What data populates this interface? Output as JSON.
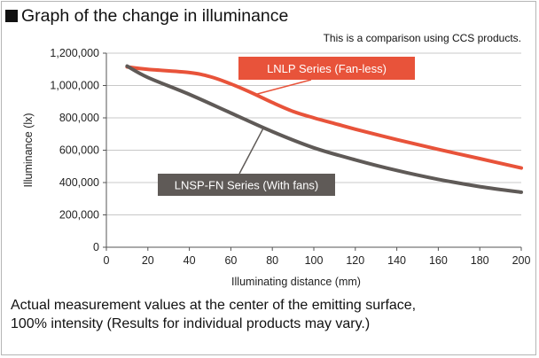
{
  "header": {
    "title": "Graph of the change in illuminance",
    "subtitle": "This is a comparison using CCS products."
  },
  "caption": {
    "line1": "Actual measurement values at the center of the emitting surface,",
    "line2": "100% intensity (Results for individual products may vary.)"
  },
  "chart_data": {
    "type": "line",
    "xlabel": "Illuminating distance (mm)",
    "ylabel": "Illuminance (lx)",
    "xlim": [
      0,
      200
    ],
    "ylim": [
      0,
      1200000
    ],
    "x_ticks": [
      0,
      20,
      40,
      60,
      80,
      100,
      120,
      140,
      160,
      180,
      200
    ],
    "y_ticks": [
      0,
      200000,
      400000,
      600000,
      800000,
      1000000,
      1200000
    ],
    "x_tick_labels": [
      "0",
      "20",
      "40",
      "60",
      "80",
      "100",
      "120",
      "140",
      "160",
      "180",
      "200"
    ],
    "y_tick_labels": [
      "0",
      "200,000",
      "400,000",
      "600,000",
      "800,000",
      "1,000,000",
      "1,200,000"
    ],
    "grid": "horizontal",
    "series": [
      {
        "name": "LNLP Series (Fan-less)",
        "color": "#e8533a",
        "x": [
          10,
          20,
          40,
          50,
          60,
          70,
          80,
          90,
          100,
          110,
          120,
          140,
          160,
          180,
          200
        ],
        "y": [
          1115000,
          1100000,
          1080000,
          1055000,
          1010000,
          955000,
          895000,
          840000,
          800000,
          765000,
          730000,
          665000,
          605000,
          548000,
          490000
        ]
      },
      {
        "name": "LNSP-FN Series (With fans)",
        "color": "#5f5a57",
        "x": [
          10,
          20,
          40,
          60,
          80,
          100,
          120,
          140,
          160,
          180,
          200
        ],
        "y": [
          1120000,
          1050000,
          945000,
          830000,
          715000,
          615000,
          540000,
          475000,
          420000,
          375000,
          340000
        ]
      }
    ]
  }
}
